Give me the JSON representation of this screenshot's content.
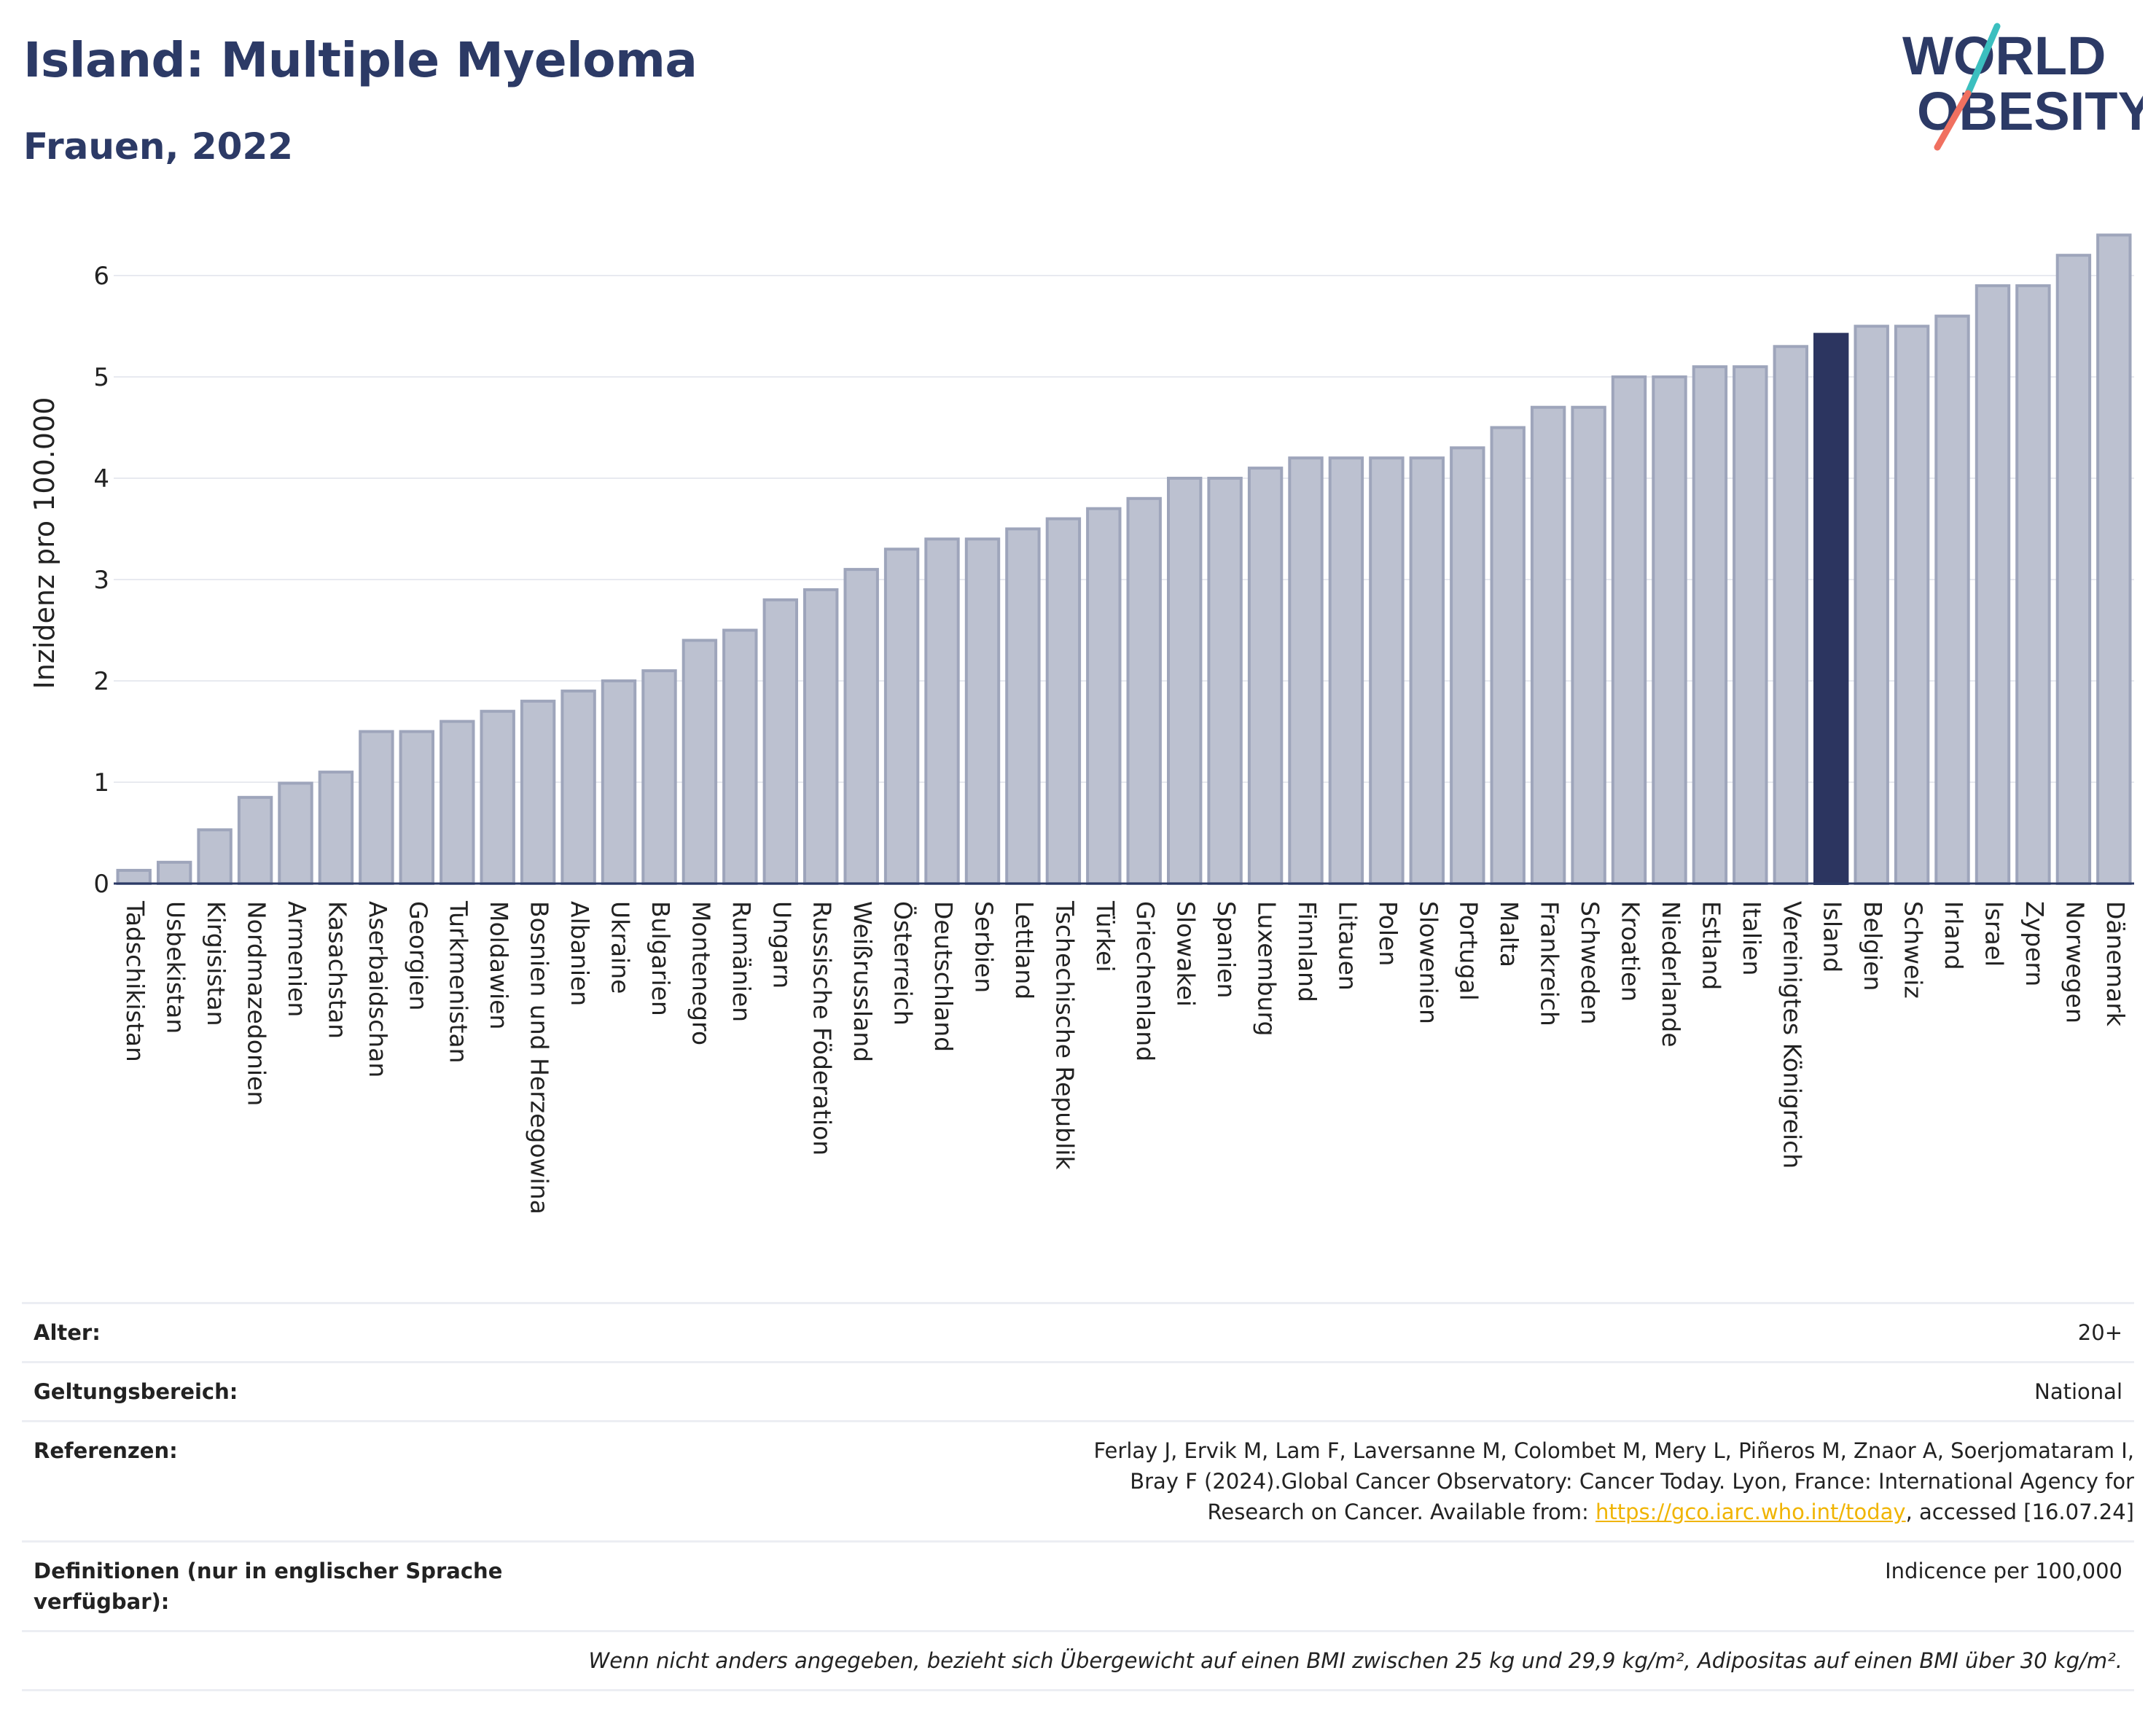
{
  "title": "Island: Multiple Myeloma",
  "subtitle": "Frauen, 2022",
  "logo": {
    "line1": "WORLD",
    "line2": "OBESITY"
  },
  "colors": {
    "bar": "#bcc1d0",
    "bar_edge": "#9ea5bb",
    "highlight": "#2c3560",
    "axis": "#2c3a66",
    "grid": "#e8eaf0",
    "link": "#f0b400",
    "logo_text": "#2c3a66",
    "logo_teal": "#3bbfbf",
    "logo_coral": "#f07060"
  },
  "chart_data": {
    "type": "bar",
    "title": "Island: Multiple Myeloma",
    "subtitle": "Frauen, 2022",
    "xlabel": "",
    "ylabel": "Inzidenz pro 100.000",
    "ylim": [
      0,
      6.6
    ],
    "yticks": [
      0,
      1,
      2,
      3,
      4,
      5,
      6
    ],
    "grid": true,
    "highlight": "Island",
    "categories": [
      "Tadschikistan",
      "Usbekistan",
      "Kirgisistan",
      "Nordmazedonien",
      "Armenien",
      "Kasachstan",
      "Aserbaidschan",
      "Georgien",
      "Turkmenistan",
      "Moldawien",
      "Bosnien und Herzegowina",
      "Albanien",
      "Ukraine",
      "Bulgarien",
      "Montenegro",
      "Rumänien",
      "Ungarn",
      "Russische Föderation",
      "Weißrussland",
      "Österreich",
      "Deutschland",
      "Serbien",
      "Lettland",
      "Tschechische Republik",
      "Türkei",
      "Griechenland",
      "Slowakei",
      "Spanien",
      "Luxemburg",
      "Finnland",
      "Litauen",
      "Polen",
      "Slowenien",
      "Portugal",
      "Malta",
      "Frankreich",
      "Schweden",
      "Kroatien",
      "Niederlande",
      "Estland",
      "Italien",
      "Vereinigtes Königreich",
      "Island",
      "Belgien",
      "Schweiz",
      "Irland",
      "Israel",
      "Zypern",
      "Norwegen",
      "Dänemark"
    ],
    "values": [
      0.13,
      0.21,
      0.53,
      0.85,
      0.99,
      1.1,
      1.5,
      1.5,
      1.6,
      1.7,
      1.8,
      1.9,
      2.0,
      2.1,
      2.4,
      2.5,
      2.8,
      2.9,
      3.1,
      3.3,
      3.4,
      3.4,
      3.5,
      3.6,
      3.7,
      3.8,
      4.0,
      4.0,
      4.1,
      4.2,
      4.2,
      4.2,
      4.2,
      4.3,
      4.5,
      4.7,
      4.7,
      5.0,
      5.0,
      5.1,
      5.1,
      5.3,
      5.42,
      5.5,
      5.5,
      5.6,
      5.9,
      5.9,
      6.2,
      6.4
    ]
  },
  "meta": {
    "age_label": "Alter:",
    "age_value": "20+",
    "scope_label": "Geltungsbereich:",
    "scope_value": "National",
    "ref_label": "Referenzen:",
    "ref_text1": "Ferlay J, Ervik M, Lam F, Laversanne M, Colombet M, Mery L, Piñeros M, Znaor A, Soerjomataram I, Bray F (2024).Global Cancer Observatory: Cancer Today. Lyon, France: International Agency for Research on Cancer. Available from: ",
    "ref_link": "https://gco.iarc.who.int/today",
    "ref_text2": ", accessed [16.07.24]",
    "def_label": "Definitionen (nur in englischer Sprache verfügbar):",
    "def_value": "Indicence per 100,000",
    "note": "Wenn nicht anders angegeben, bezieht sich Übergewicht auf einen BMI zwischen 25 kg und 29,9 kg/m², Adipositas auf einen BMI über 30 kg/m²."
  }
}
